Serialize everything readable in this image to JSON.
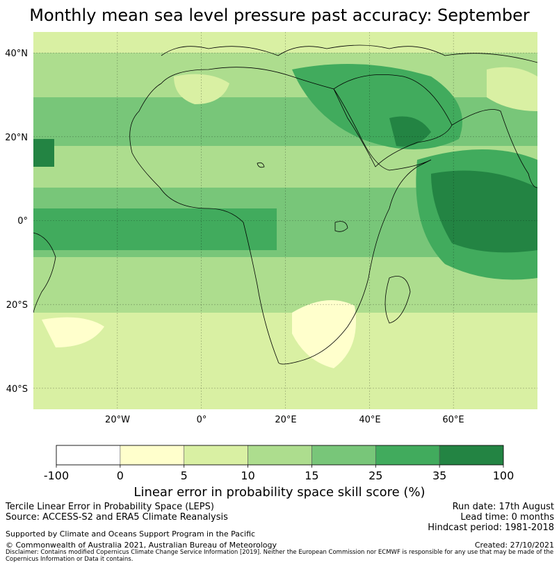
{
  "title": "Monthly mean sea level pressure past accuracy: September",
  "map": {
    "lat_labels": [
      "40°N",
      "20°N",
      "0°",
      "20°S",
      "40°S"
    ],
    "lon_labels": [
      "20°W",
      "0°",
      "20°E",
      "40°E",
      "60°E"
    ],
    "grid_lats": [
      40,
      20,
      0,
      -20,
      -40
    ],
    "grid_lons": [
      -20,
      0,
      20,
      40,
      60
    ],
    "extent": {
      "lon_min": -40,
      "lon_max": 80,
      "lat_min": -45,
      "lat_max": 45
    }
  },
  "colorbar": {
    "ticks": [
      "-100",
      "0",
      "5",
      "10",
      "15",
      "25",
      "35",
      "100"
    ],
    "colors": [
      "#ffffff",
      "#ffffcc",
      "#d9f0a3",
      "#addd8e",
      "#78c679",
      "#41ab5d",
      "#238443"
    ],
    "label": "Linear error in probability space skill score (%)"
  },
  "footer": {
    "method": "Tercile Linear Error in Probability Space (LEPS)",
    "source": "Source: ACCESS-S2 and ERA5 Climate Reanalysis",
    "run_date": "Run date: 17th August",
    "lead_time": "Lead time: 0 months",
    "hindcast": "Hindcast period: 1981-2018",
    "support": "Supported by Climate and Oceans Support Program in the Pacific",
    "copyright": "© Commonwealth of Australia 2021, Australian Bureau of Meteorology",
    "created": "Created: 27/10/2021",
    "disclaimer": "Disclaimer: Contains modified Copernicus Climate Change Service Information [2019]. Neither the European Commission nor ECMWF is responsible for any use that may be made of the Copernicus Information or Data it contains."
  }
}
